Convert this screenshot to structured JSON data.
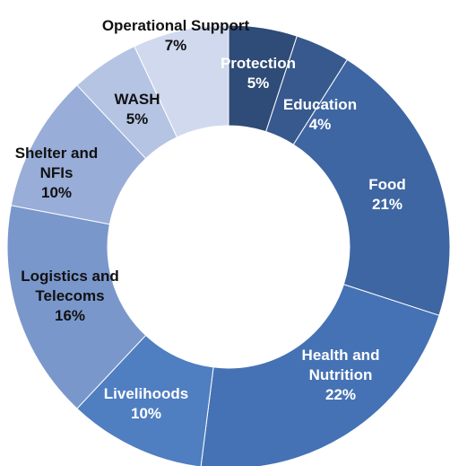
{
  "chart_data": {
    "type": "donut",
    "categories": [
      "Protection",
      "Education",
      "Food",
      "Health and Nutrition",
      "Livelihoods",
      "Logistics and Telecoms",
      "Shelter and NFIs",
      "WASH",
      "Operational Support"
    ],
    "values": [
      5,
      4,
      21,
      22,
      10,
      16,
      10,
      5,
      7
    ],
    "value_labels": [
      "5%",
      "4%",
      "21%",
      "22%",
      "10%",
      "16%",
      "10%",
      "5%",
      "7%"
    ],
    "colors": [
      "#2f4b77",
      "#37598d",
      "#3e66a2",
      "#4572b4",
      "#4f7ec1",
      "#7a97cc",
      "#98add7",
      "#b5c4e3",
      "#d0d9ed"
    ]
  }
}
